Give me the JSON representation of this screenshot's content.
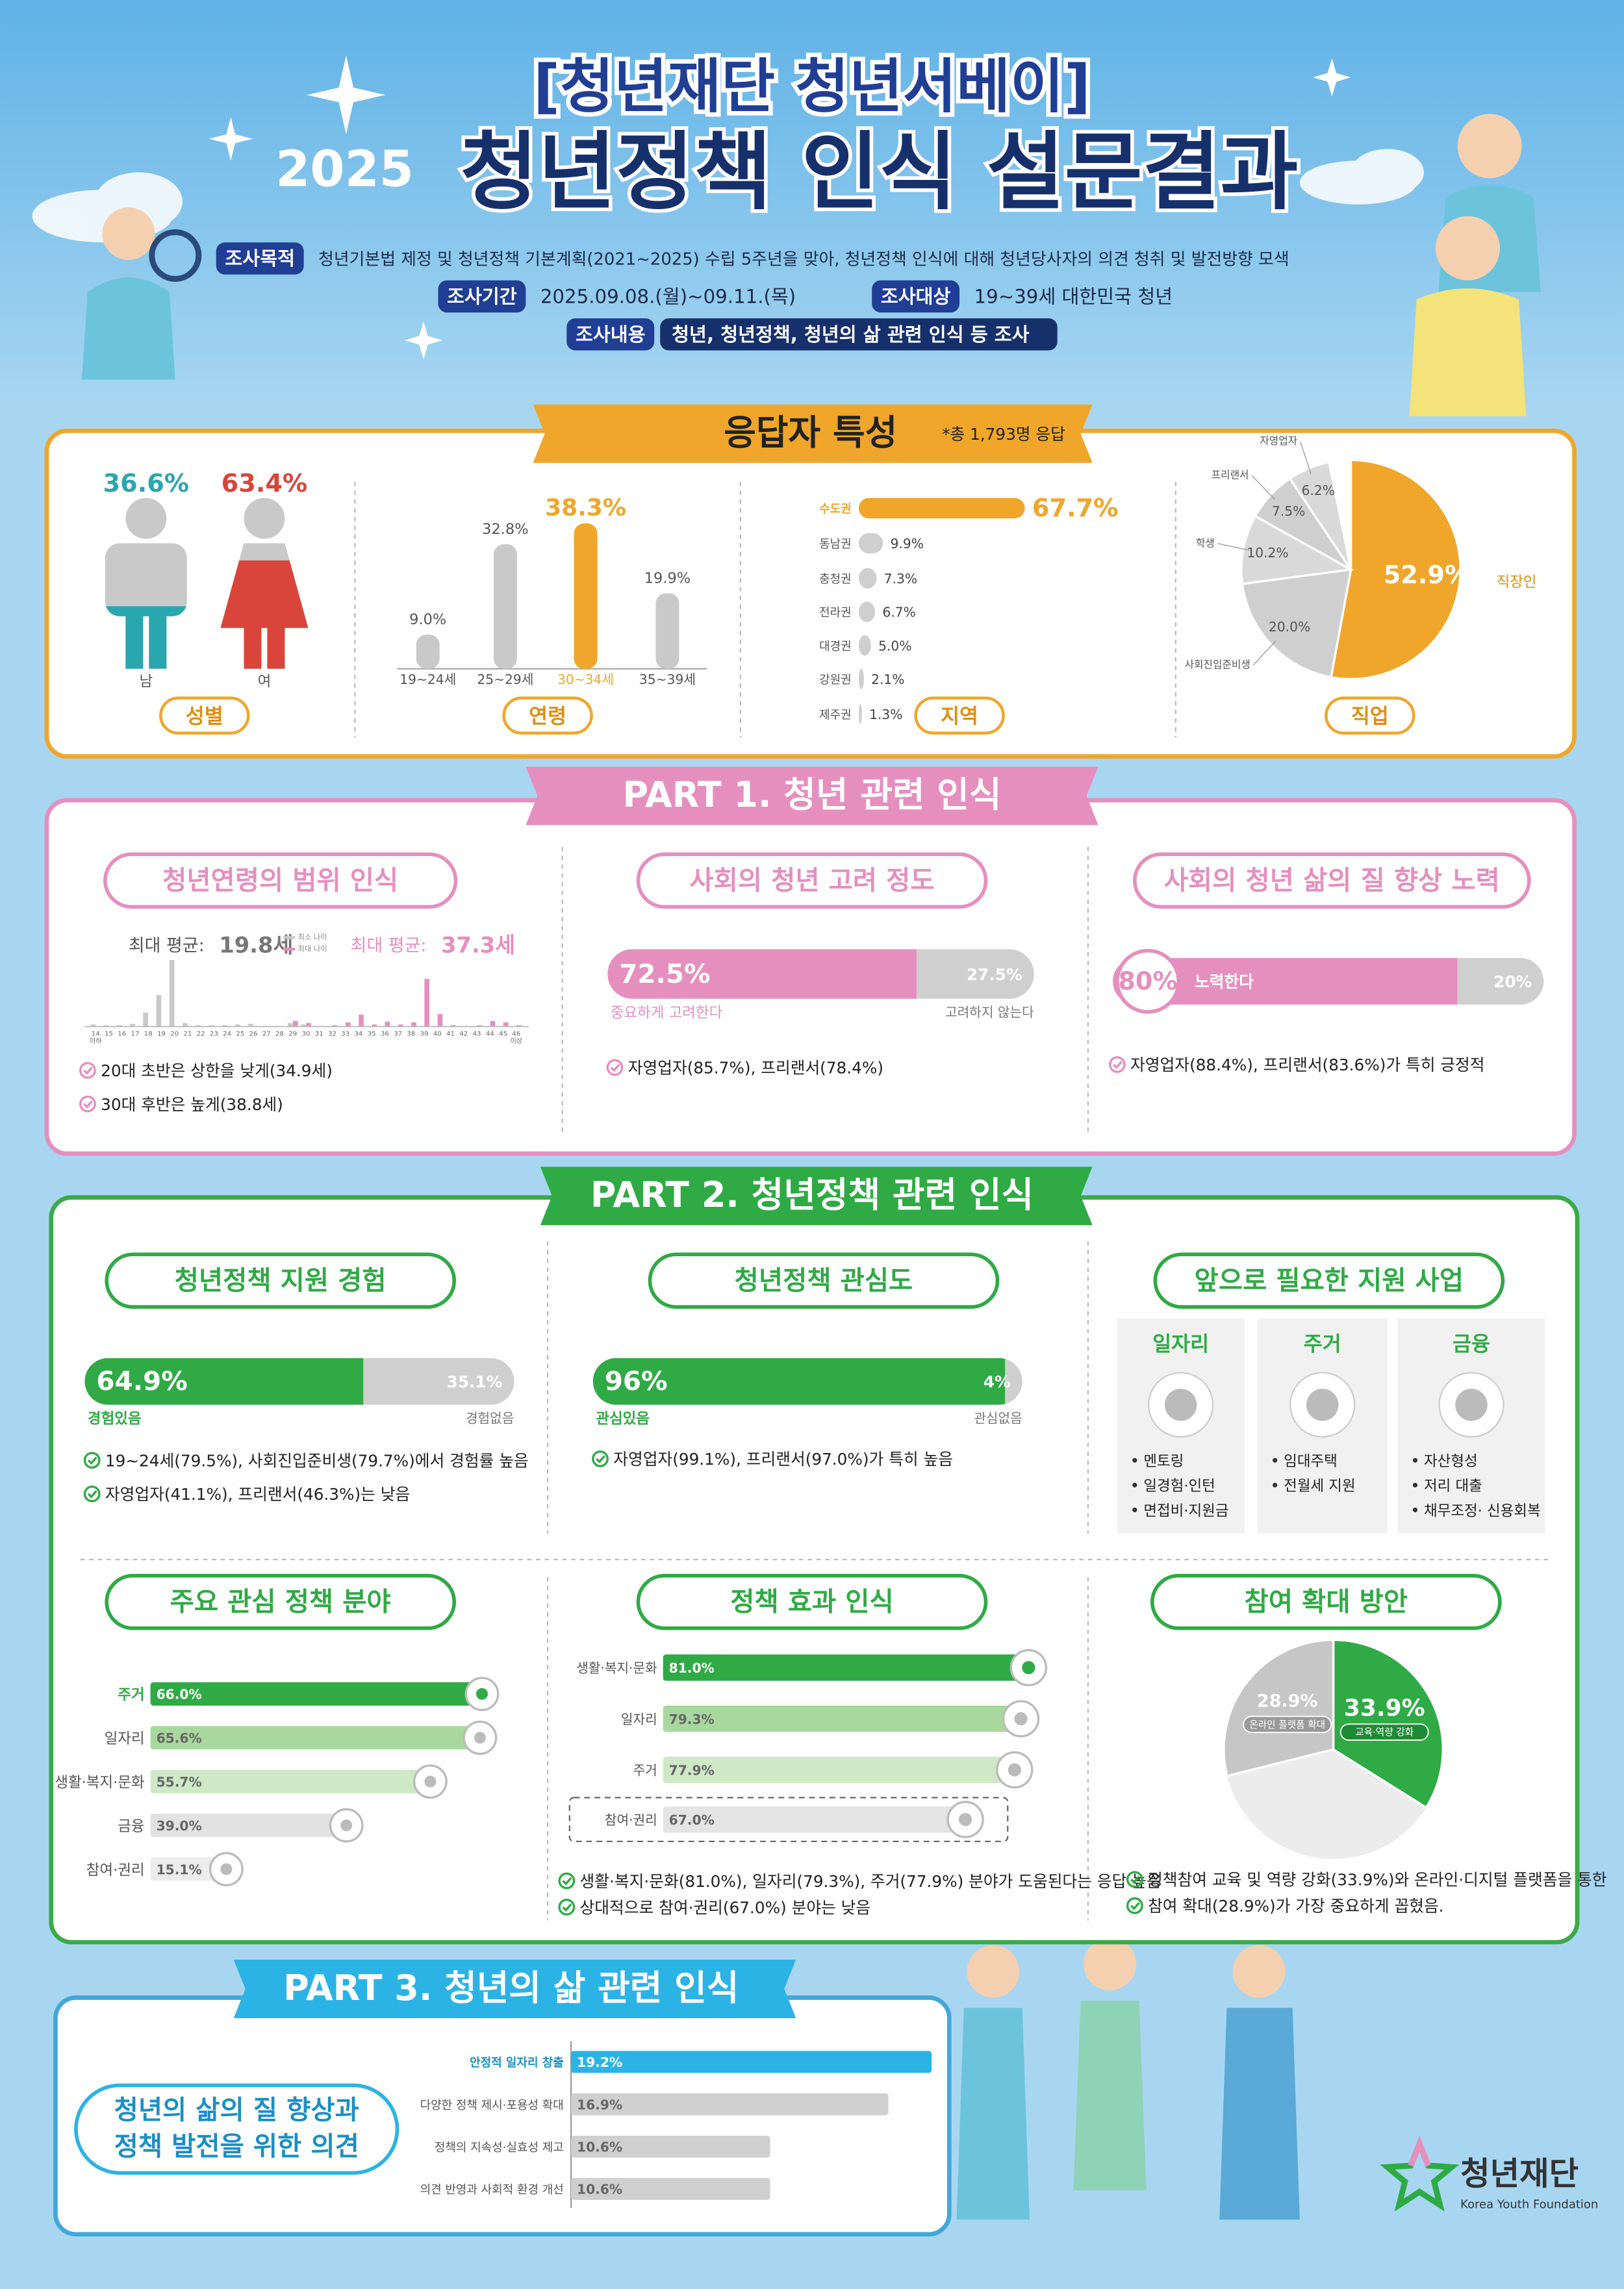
{
  "header": {
    "series_name": "[청년재단 청년서베이]",
    "year": "2025",
    "title": "청년정책 인식 설문결과",
    "info": [
      {
        "label": "조사목적",
        "text": "청년기본법 제정 및 청년정책 기본계획(2021~2025) 수립 5주년을 맞아, 청년정책 인식에 대해 청년당사자의 의견 청취 및 발전방향 모색"
      },
      {
        "label": "조사기간",
        "text": "2025.09.08.(월)~09.11.(목)"
      },
      {
        "label": "조사대상",
        "text": "19~39세 대한민국 청년"
      },
      {
        "label": "조사내용",
        "text": "청년, 청년정책, 청년의 삶 관련 인식 등 조사"
      }
    ]
  },
  "sections": [
    {
      "title": "응답자 특성",
      "note": "*총 1,793명 응답"
    },
    {
      "title": "PART 1. 청년 관련 인식"
    },
    {
      "title": "PART 2. 청년정책 관련 인식"
    },
    {
      "title": "PART 3. 청년의 삶 관련 인식"
    }
  ],
  "support_needs": {
    "title": "앞으로 필요한 지원 사업",
    "groups": [
      {
        "name": "일자리",
        "items": [
          "멘토링",
          "일경험·인턴",
          "면접비·지원금"
        ]
      },
      {
        "name": "주거",
        "items": [
          "임대주택",
          "전월세 지원"
        ]
      },
      {
        "name": "금융",
        "items": [
          "자산형성",
          "저리 대출",
          "채무조정· 신용회복"
        ]
      }
    ]
  },
  "chart_data": [
    {
      "type": "pictogram",
      "title": "성별",
      "categories": [
        "남",
        "여"
      ],
      "values": [
        36.6,
        63.4
      ],
      "value_labels": [
        "36.6%",
        "63.4%"
      ],
      "colors": [
        "#2aa6ae",
        "#d9453a"
      ]
    },
    {
      "type": "bar",
      "title": "연령",
      "categories": [
        "19~24세",
        "25~29세",
        "30~34세",
        "35~39세"
      ],
      "values": [
        9.0,
        32.8,
        38.3,
        19.9
      ],
      "value_labels": [
        "9.0%",
        "32.8%",
        "38.3%",
        "19.9%"
      ],
      "colors": [
        "#c9c9c9",
        "#c9c9c9",
        "#f0a62a",
        "#c9c9c9"
      ]
    },
    {
      "type": "hbar",
      "title": "지역",
      "categories": [
        "수도권",
        "동남권",
        "충청권",
        "전라권",
        "대경권",
        "강원권",
        "제주권"
      ],
      "values": [
        67.7,
        9.9,
        7.3,
        6.7,
        5.0,
        2.1,
        1.3
      ],
      "value_labels": [
        "67.7%",
        "9.9%",
        "7.3%",
        "6.7%",
        "5.0%",
        "2.1%",
        "1.3%"
      ],
      "colors": [
        "#f0a62a",
        "#cfcfcf",
        "#cfcfcf",
        "#cfcfcf",
        "#cfcfcf",
        "#cfcfcf",
        "#cfcfcf"
      ]
    },
    {
      "type": "pie",
      "title": "직업",
      "categories": [
        "직장인",
        "사회진입준비생",
        "학생",
        "프리랜서",
        "자영업자"
      ],
      "values": [
        52.9,
        20.0,
        10.2,
        7.5,
        6.2
      ],
      "value_labels": [
        "52.9%",
        "20.0%",
        "10.2%",
        "7.5%",
        "6.2%"
      ],
      "colors": [
        "#f0a62a",
        "#cfcfcf",
        "#d9d9d9",
        "#cfcfcf",
        "#d9d9d9"
      ]
    },
    {
      "type": "bar",
      "title": "청년연령의 범위 인식",
      "stats": [
        {
          "label": "최대 평균:",
          "value_label": "19.8세"
        },
        {
          "label": "최대 평균:",
          "value_label": "37.3세"
        }
      ],
      "categories": [
        "14",
        "15",
        "16",
        "17",
        "18",
        "19",
        "20",
        "21",
        "22",
        "23",
        "24",
        "25",
        "26",
        "27",
        "28",
        "29",
        "30",
        "31",
        "32",
        "33",
        "34",
        "35",
        "36",
        "37",
        "38",
        "39",
        "40",
        "41",
        "42",
        "43",
        "44",
        "45",
        "46"
      ],
      "first_tick_note": "이하",
      "last_tick_note": "이상",
      "series": [
        {
          "name": "최소 나이",
          "color": "#c9c9c9",
          "values": [
            0.3,
            0.2,
            0.2,
            0.4,
            2.0,
            4.5,
            9.5,
            0.5,
            0.2,
            0.2,
            0.2,
            0.3,
            0.4,
            0.1,
            0.1,
            0.5,
            0.3,
            0.1,
            0,
            0,
            0,
            0,
            0,
            0,
            0,
            0,
            0,
            0,
            0,
            0,
            0,
            0,
            0
          ]
        },
        {
          "name": "최대 나이",
          "color": "#e58fbf",
          "values": [
            0,
            0,
            0,
            0,
            0,
            0,
            0,
            0,
            0,
            0,
            0,
            0,
            0,
            0,
            0,
            0.8,
            0.5,
            0.1,
            0.2,
            0.6,
            1.7,
            0.3,
            0.7,
            0.3,
            0.6,
            6.8,
            1.8,
            0.2,
            0.1,
            0.2,
            0.8,
            0.6,
            0.2
          ]
        }
      ],
      "notes": [
        "20대 초반은 상한을 낮게(34.9세)",
        "30대 후반은 높게(38.8세)"
      ]
    },
    {
      "type": "stacked",
      "title": "사회의 청년 고려 정도",
      "categories": [
        "중요하게 고려한다",
        "고려하지 않는다"
      ],
      "values": [
        72.5,
        27.5
      ],
      "value_labels": [
        "72.5%",
        "27.5%"
      ],
      "colors": [
        "#e58fbf",
        "#cfcfcf"
      ],
      "notes": [
        "자영업자(85.7%), 프리랜서(78.4%)"
      ]
    },
    {
      "type": "stacked",
      "title": "사회의 청년 삶의 질 향상 노력",
      "categories": [
        "노력한다",
        null
      ],
      "values": [
        80,
        20
      ],
      "value_labels": [
        "80%",
        "20%"
      ],
      "colors": [
        "#e58fbf",
        "#cfcfcf"
      ],
      "notes": [
        "자영업자(88.4%), 프리랜서(83.6%)가 특히 긍정적"
      ]
    },
    {
      "type": "stacked",
      "title": "청년정책 지원 경험",
      "categories": [
        "경험있음",
        "경험없음"
      ],
      "values": [
        64.9,
        35.1
      ],
      "value_labels": [
        "64.9%",
        "35.1%"
      ],
      "colors": [
        "#2faa45",
        "#cfcfcf"
      ],
      "notes": [
        "19~24세(79.5%), 사회진입준비생(79.7%)에서 경험률 높음",
        "자영업자(41.1%), 프리랜서(46.3%)는 낮음"
      ]
    },
    {
      "type": "stacked",
      "title": "청년정책 관심도",
      "categories": [
        "관심있음",
        "관심없음"
      ],
      "values": [
        96,
        4
      ],
      "value_labels": [
        "96%",
        "4%"
      ],
      "colors": [
        "#2faa45",
        "#cfcfcf"
      ],
      "notes": [
        "자영업자(99.1%), 프리랜서(97.0%)가 특히 높음"
      ]
    },
    {
      "type": "hbar",
      "title": "주요 관심 정책 분야",
      "categories": [
        "주거",
        "일자리",
        "생활·복지·문화",
        "금융",
        "참여·권리"
      ],
      "values": [
        66.0,
        65.6,
        55.7,
        39.0,
        15.1
      ],
      "value_labels": [
        "66.0%",
        "65.6%",
        "55.7%",
        "39.0%",
        "15.1%"
      ],
      "colors": [
        "#2faa45",
        "#a9d89e",
        "#cfe8c6",
        "#e2e2e2",
        "#ececec"
      ]
    },
    {
      "type": "hbar",
      "title": "정책 효과 인식",
      "categories": [
        "생활·복지·문화",
        "일자리",
        "주거",
        "참여·권리"
      ],
      "values": [
        81.0,
        79.3,
        77.9,
        67.0
      ],
      "value_labels": [
        "81.0%",
        "79.3%",
        "77.9%",
        "67.0%"
      ],
      "colors": [
        "#2faa45",
        "#a9d89e",
        "#cfe8c6",
        "#e4e4e4"
      ],
      "notes": [
        "생활·복지·문화(81.0%), 일자리(79.3%), 주거(77.9%) 분야가 도움된다는 응답 높음",
        "상대적으로 참여·권리(67.0%) 분야는 낮음"
      ]
    },
    {
      "type": "pie",
      "title": "참여 확대 방안",
      "categories": [
        "교육·역량 강화",
        "온라인 플랫폼 확대"
      ],
      "values": [
        33.9,
        28.9
      ],
      "value_labels": [
        "33.9%",
        "28.9%"
      ],
      "colors": [
        "#2faa45",
        "#c6c6c6"
      ],
      "notes": [
        "정책참여 교육 및 역량 강화(33.9%)와 온라인·디지털 플랫폼을 통한",
        "참여 확대(28.9%)가 가장 중요하게 꼽혔음."
      ]
    },
    {
      "type": "hbar",
      "title_lines": [
        "청년의 삶의 질 향상과",
        "정책 발전을 위한 의견"
      ],
      "categories": [
        "안정적 일자리 창출",
        "다양한 정책 제시·포용성 확대",
        "정책의 지속성·실효성 제고",
        "의견 반영과 사회적 환경 개선"
      ],
      "values": [
        19.2,
        16.9,
        10.6,
        10.6
      ],
      "value_labels": [
        "19.2%",
        "16.9%",
        "10.6%",
        "10.6%"
      ],
      "colors": [
        "#2bb3e5",
        "#cfcfcf",
        "#cfcfcf",
        "#cfcfcf"
      ]
    }
  ],
  "footer": {
    "org": "청년재단",
    "org_en": "Korea Youth Foundation"
  }
}
